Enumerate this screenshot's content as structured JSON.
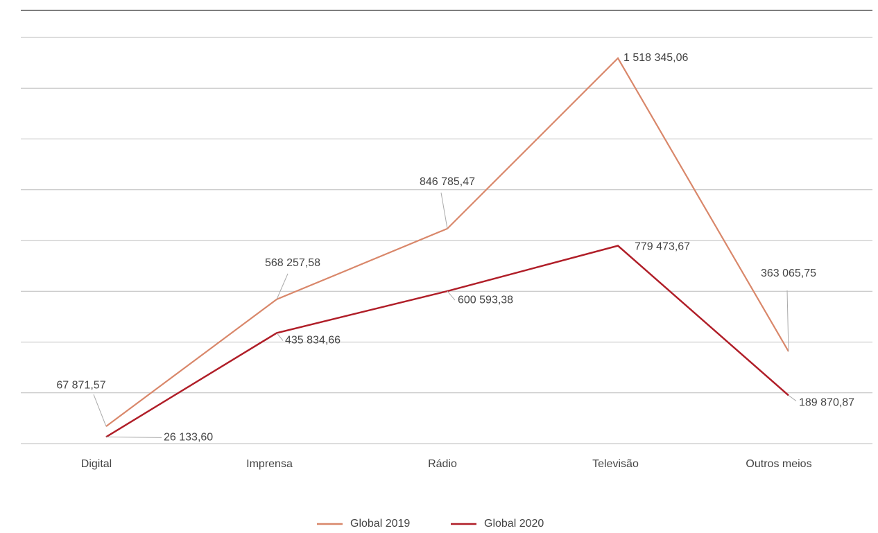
{
  "chart_data": {
    "type": "line",
    "categories": [
      "Digital",
      "Imprensa",
      "Rádio",
      "Televisão",
      "Outros meios"
    ],
    "series": [
      {
        "name": "Global 2019",
        "color": "#d9876a",
        "values": [
          67871.57,
          568257.58,
          846785.47,
          1518345.06,
          363065.75
        ],
        "value_labels": [
          "67 871,57",
          "568 257,58",
          "846 785,47",
          "1 518 345,06",
          "363 065,75"
        ]
      },
      {
        "name": "Global 2020",
        "color": "#b01e28",
        "values": [
          26133.6,
          435834.66,
          600593.38,
          779473.67,
          189870.87
        ],
        "value_labels": [
          "26 133,60",
          "435 834,66",
          "600 593,38",
          "779 473,67",
          "189 870,87"
        ]
      }
    ],
    "ylim": [
      0,
      1600000
    ],
    "yticks": [
      0,
      200000,
      400000,
      600000,
      800000,
      1000000,
      1200000,
      1400000,
      1600000
    ],
    "grid": true,
    "legend": "bottom"
  }
}
